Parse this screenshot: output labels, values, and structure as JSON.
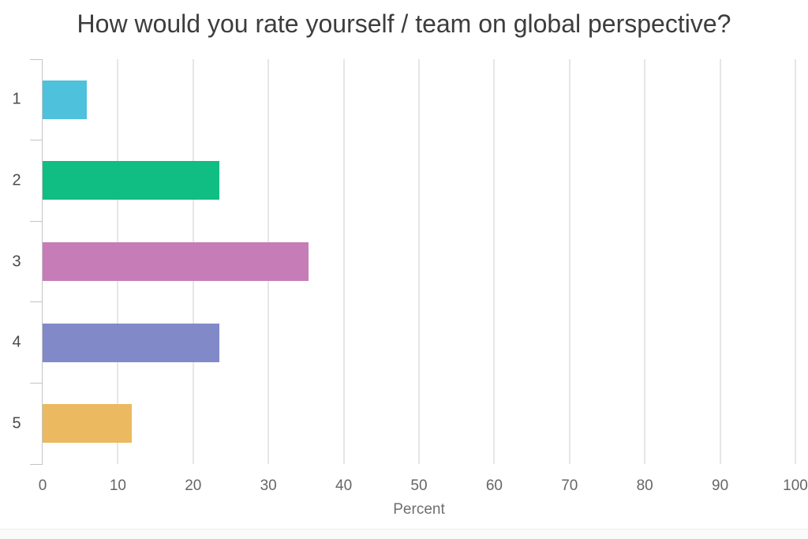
{
  "title": "How would you rate yourself / team on global perspective?",
  "chart_data": {
    "type": "bar",
    "orientation": "horizontal",
    "title": "How would you rate yourself / team on global perspective?",
    "categories": [
      "1",
      "2",
      "3",
      "4",
      "5"
    ],
    "values": [
      5.9,
      23.5,
      35.3,
      23.5,
      11.8
    ],
    "bar_colors": [
      "#4ec1dc",
      "#10bd82",
      "#c67cb7",
      "#8289c9",
      "#ebb960"
    ],
    "xlabel": "Percent",
    "ylabel": "",
    "xlim": [
      0,
      100
    ],
    "x_ticks": [
      0,
      10,
      20,
      30,
      40,
      50,
      60,
      70,
      80,
      90,
      100
    ],
    "grid": "vertical",
    "legend": "none"
  },
  "colors": {
    "gridline": "#cccccc",
    "axis": "#c4c4c4",
    "tick_label": "#666666",
    "category_label": "#4a4a4a",
    "title": "#3d3d3d",
    "axis_label": "#6e6e6e",
    "background": "#ffffff",
    "footer_background": "#fafafa",
    "footer_line": "#efefef"
  }
}
